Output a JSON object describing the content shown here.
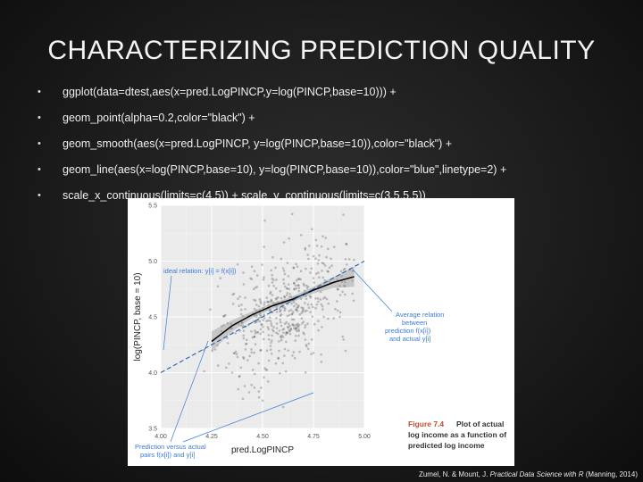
{
  "slide": {
    "title": "CHARACTERIZING PREDICTION QUALITY",
    "bullets": [
      "ggplot(data=dtest,aes(x=pred.LogPINCP,y=log(PINCP,base=10))) +",
      "geom_point(alpha=0.2,color=\"black\") +",
      "geom_smooth(aes(x=pred.LogPINCP, y=log(PINCP,base=10)),color=\"black\") +",
      "geom_line(aes(x=log(PINCP,base=10), y=log(PINCP,base=10)),color=\"blue\",linetype=2) +",
      "scale_x_continuous(limits=c(4,5)) + scale_y_continuous(limits=c(3.5,5.5))"
    ],
    "citation": {
      "authors": "Zumel, N. & Mount, J.",
      "book": "Practical Data Science with R",
      "publisher": "(Manning, 2014)"
    }
  },
  "figure": {
    "annotations": {
      "ideal": "ideal relation: y[i] = f(x[i])",
      "average": [
        "Average relation",
        "between",
        "prediction f(x[i])",
        "and actual y[i]"
      ],
      "pairs": [
        "Prediction versus actual",
        "pairs f(x[i]) and y[i]"
      ]
    },
    "caption": {
      "label": "Figure 7.4",
      "text_lines": [
        "Plot of actual",
        "log income as a function of",
        "predicted log income"
      ]
    },
    "colors": {
      "ideal_line": "#2060b8",
      "smooth_line": "#000000",
      "annotation_text": "#3b7bd4",
      "caption_label": "#c05030"
    }
  },
  "chart_data": {
    "type": "scatter",
    "xlabel": "pred.LogPINCP",
    "ylabel": "log(PINCP, base = 10)",
    "x_ticks": [
      "4.00",
      "4.25",
      "4.50",
      "4.75",
      "5.00"
    ],
    "y_ticks": [
      "3.5",
      "4.0",
      "4.5",
      "5.0",
      "5.5"
    ],
    "xlim": [
      4.0,
      5.0
    ],
    "ylim": [
      3.5,
      5.5
    ],
    "grid": true,
    "series": [
      {
        "kind": "ideal",
        "style": "dashed",
        "color": "#2060b8",
        "x": [
          4.0,
          5.0
        ],
        "y": [
          4.0,
          5.0
        ]
      },
      {
        "kind": "smooth",
        "style": "solid",
        "color": "#000000",
        "x": [
          4.25,
          4.35,
          4.45,
          4.55,
          4.65,
          4.75,
          4.85,
          4.95
        ],
        "y": [
          4.28,
          4.42,
          4.52,
          4.6,
          4.66,
          4.74,
          4.81,
          4.86
        ],
        "ribbon_half_width": [
          0.09,
          0.05,
          0.03,
          0.025,
          0.025,
          0.03,
          0.05,
          0.09
        ]
      }
    ],
    "points_summary": "dense cloud of semi-transparent black points centered around x 4.3–4.9, y 4.0–5.3"
  }
}
